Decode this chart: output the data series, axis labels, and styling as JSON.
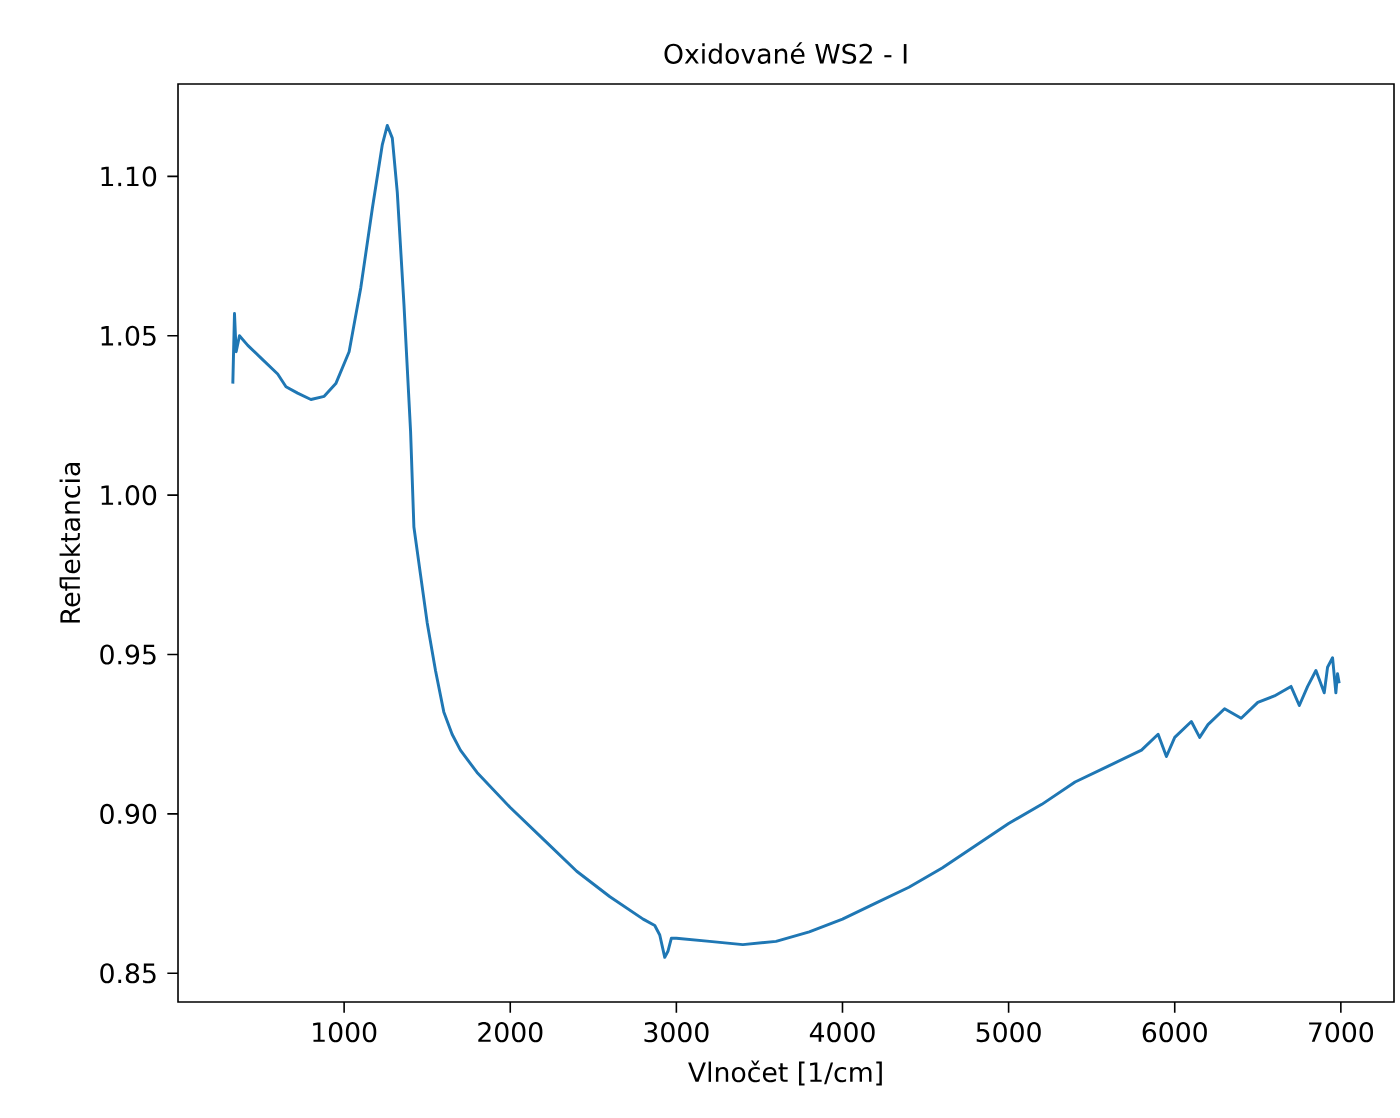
{
  "chart_data": {
    "type": "line",
    "title": "Oxidované WS2 - I",
    "xlabel": "Vlnočet [1/cm]",
    "ylabel": "Reflektancia",
    "xlim": [
      0,
      7320
    ],
    "ylim": [
      0.841,
      1.129
    ],
    "xticks": [
      1000,
      2000,
      3000,
      4000,
      5000,
      6000,
      7000
    ],
    "yticks": [
      {
        "value": 0.85,
        "label": "0.85"
      },
      {
        "value": 0.9,
        "label": "0.90"
      },
      {
        "value": 0.95,
        "label": "0.95"
      },
      {
        "value": 1.0,
        "label": "1.00"
      },
      {
        "value": 1.05,
        "label": "1.05"
      },
      {
        "value": 1.1,
        "label": "1.10"
      }
    ],
    "series": [
      {
        "color": "#1f77b4",
        "x": [
          330,
          340,
          350,
          370,
          420,
          500,
          600,
          650,
          720,
          800,
          880,
          950,
          1030,
          1100,
          1170,
          1230,
          1260,
          1290,
          1320,
          1360,
          1400,
          1420,
          1460,
          1500,
          1550,
          1600,
          1650,
          1700,
          1800,
          2000,
          2200,
          2400,
          2600,
          2800,
          2870,
          2900,
          2930,
          2950,
          2970,
          3000,
          3200,
          3400,
          3600,
          3800,
          4000,
          4200,
          4400,
          4600,
          4800,
          5000,
          5200,
          5400,
          5600,
          5800,
          5900,
          5950,
          6000,
          6100,
          6150,
          6200,
          6300,
          6400,
          6500,
          6600,
          6700,
          6750,
          6800,
          6850,
          6900,
          6920,
          6950,
          6970,
          6980,
          6990
        ],
        "values": [
          1.035,
          1.057,
          1.045,
          1.05,
          1.047,
          1.043,
          1.038,
          1.034,
          1.032,
          1.03,
          1.031,
          1.035,
          1.045,
          1.065,
          1.09,
          1.11,
          1.116,
          1.112,
          1.095,
          1.06,
          1.02,
          0.99,
          0.975,
          0.96,
          0.945,
          0.932,
          0.925,
          0.92,
          0.913,
          0.902,
          0.892,
          0.882,
          0.874,
          0.867,
          0.865,
          0.862,
          0.855,
          0.857,
          0.861,
          0.861,
          0.86,
          0.859,
          0.86,
          0.863,
          0.867,
          0.872,
          0.877,
          0.883,
          0.89,
          0.897,
          0.903,
          0.91,
          0.915,
          0.92,
          0.925,
          0.918,
          0.924,
          0.929,
          0.924,
          0.928,
          0.933,
          0.93,
          0.935,
          0.937,
          0.94,
          0.934,
          0.94,
          0.945,
          0.938,
          0.946,
          0.949,
          0.938,
          0.944,
          0.941
        ]
      }
    ]
  }
}
